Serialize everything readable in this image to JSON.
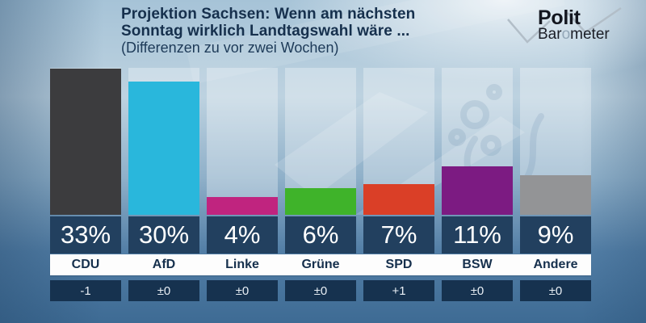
{
  "header": {
    "title_line1": "Projektion Sachsen: Wenn am nächsten",
    "title_line2": "Sonntag wirklich Landtagswahl wäre ...",
    "title_line3": "(Differenzen zu vor zwei Wochen)"
  },
  "logo": {
    "top": "Polit",
    "bottom_pre": "Bar",
    "bottom_o": "o",
    "bottom_post": "meter"
  },
  "chart_data": {
    "type": "bar",
    "title": "Projektion Sachsen: Wenn am nächsten Sonntag wirklich Landtagswahl wäre ...",
    "subtitle": "(Differenzen zu vor zwei Wochen)",
    "categories": [
      "CDU",
      "AfD",
      "Linke",
      "Grüne",
      "SPD",
      "BSW",
      "Andere"
    ],
    "values": [
      33,
      30,
      4,
      6,
      7,
      11,
      9
    ],
    "value_labels": [
      "33%",
      "30%",
      "4%",
      "6%",
      "7%",
      "11%",
      "9%"
    ],
    "diff_labels": [
      "-1",
      "±0",
      "±0",
      "±0",
      "+1",
      "±0",
      "±0"
    ],
    "bar_colors": [
      "#3c3c3e",
      "#29b7dc",
      "#c0247f",
      "#3fb32a",
      "#da3f27",
      "#7c1b82",
      "#939496"
    ],
    "unit": "%",
    "ylim": [
      0,
      33
    ],
    "grid": false,
    "legend": "none"
  },
  "colors": {
    "value_box": "#22405f",
    "diff_box": "#16324f",
    "label_strip": "#fdfdfd",
    "title_text": "#16304d",
    "value_text": "#ffffff"
  }
}
